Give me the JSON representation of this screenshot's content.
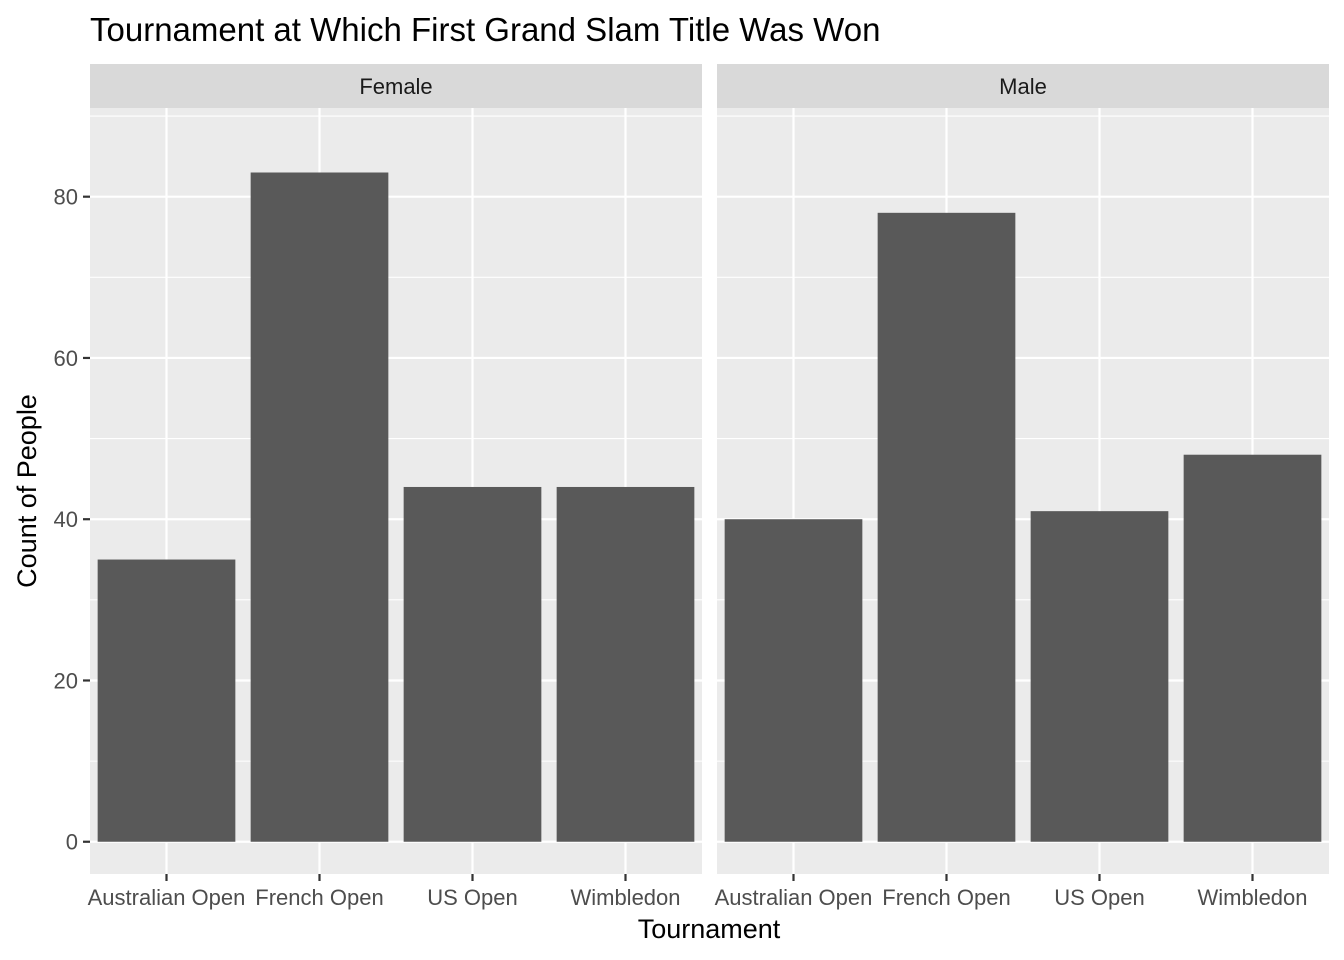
{
  "chart_data": {
    "type": "bar",
    "title": "Tournament at Which First Grand Slam Title Was Won",
    "xlabel": "Tournament",
    "ylabel": "Count of People",
    "categories": [
      "Australian Open",
      "French Open",
      "US Open",
      "Wimbledon"
    ],
    "facets": [
      {
        "name": "Female",
        "values": [
          35,
          83,
          44,
          44
        ]
      },
      {
        "name": "Male",
        "values": [
          40,
          78,
          41,
          48
        ]
      }
    ],
    "ylim": [
      -4,
      91
    ],
    "yticks": [
      0,
      20,
      40,
      60,
      80
    ],
    "grid": true,
    "legend": "none",
    "colors": {
      "bar": "#595959",
      "panel": "#ebebeb",
      "strip": "#d9d9d9",
      "grid": "#ffffff"
    }
  }
}
